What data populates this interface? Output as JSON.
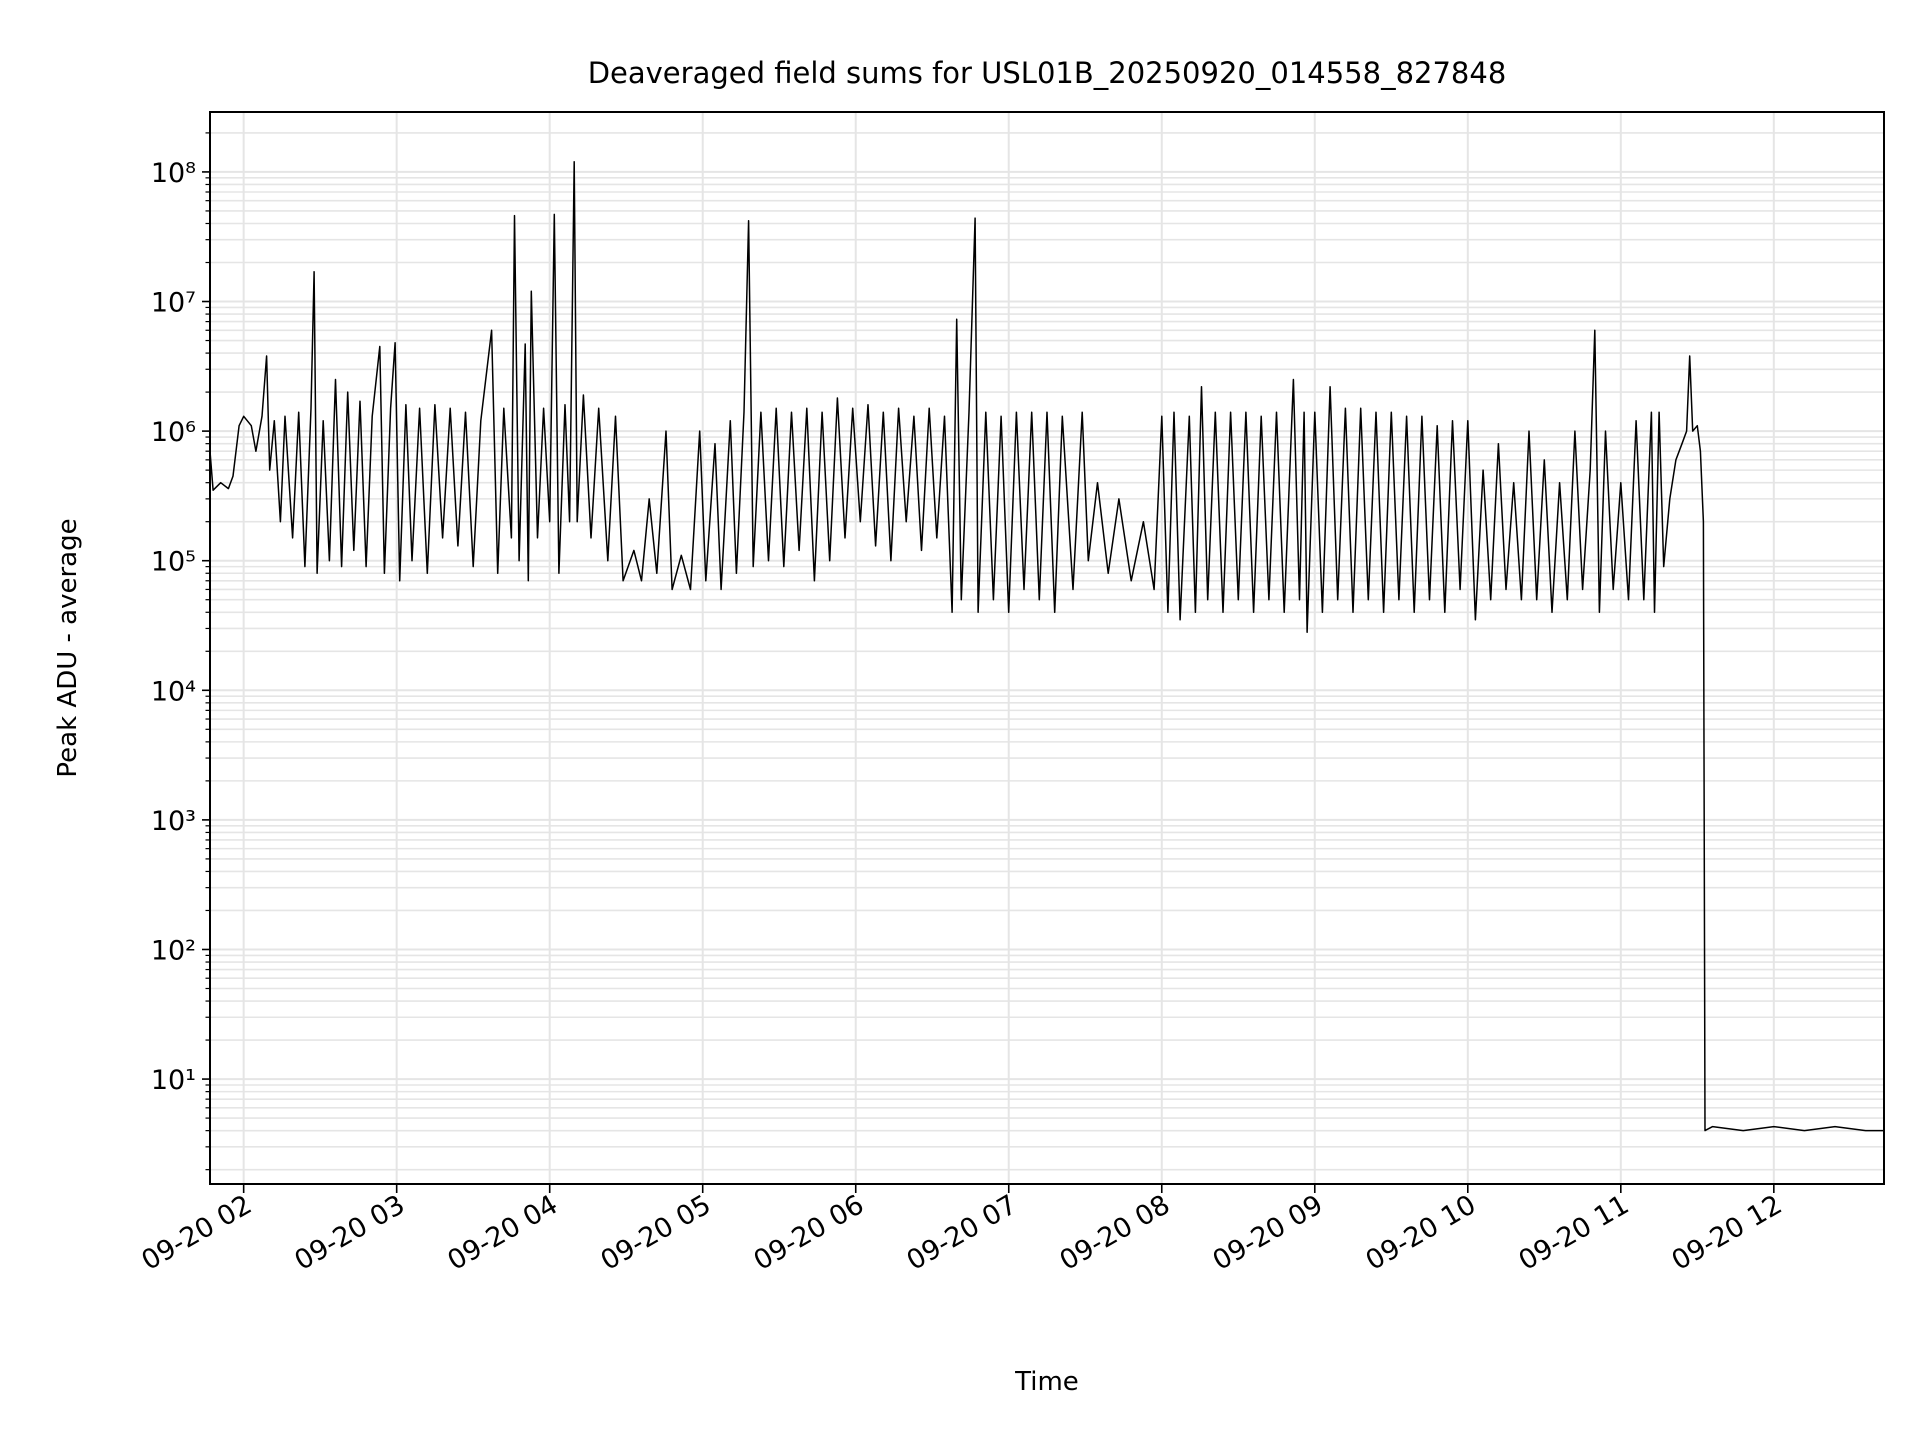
{
  "chart_data": {
    "type": "line",
    "title": "Deaveraged field sums for USL01B_20250920_014558_827848",
    "xlabel": "Time",
    "ylabel": "Peak ADU - average",
    "yscale": "log",
    "ylim": [
      1.55,
      290000000.0
    ],
    "xlim_hours": [
      1.78,
      12.72
    ],
    "grid": true,
    "line_color": "#000000",
    "grid_color": "#e5e5e5",
    "x_ticks": [
      {
        "hour": 2,
        "label": "09-20 02"
      },
      {
        "hour": 3,
        "label": "09-20 03"
      },
      {
        "hour": 4,
        "label": "09-20 04"
      },
      {
        "hour": 5,
        "label": "09-20 05"
      },
      {
        "hour": 6,
        "label": "09-20 06"
      },
      {
        "hour": 7,
        "label": "09-20 07"
      },
      {
        "hour": 8,
        "label": "09-20 08"
      },
      {
        "hour": 9,
        "label": "09-20 09"
      },
      {
        "hour": 10,
        "label": "09-20 10"
      },
      {
        "hour": 11,
        "label": "09-20 11"
      },
      {
        "hour": 12,
        "label": "09-20 12"
      }
    ],
    "y_ticks": [
      {
        "value": 10,
        "label": "10¹"
      },
      {
        "value": 100,
        "label": "10²"
      },
      {
        "value": 1000,
        "label": "10³"
      },
      {
        "value": 10000,
        "label": "10⁴"
      },
      {
        "value": 100000,
        "label": "10⁵"
      },
      {
        "value": 1000000,
        "label": "10⁶"
      },
      {
        "value": 10000000,
        "label": "10⁷"
      },
      {
        "value": 100000000,
        "label": "10⁸"
      }
    ],
    "series": [
      {
        "name": "deaveraged field sum",
        "x": [
          1.78,
          1.8,
          1.85,
          1.9,
          1.93,
          1.97,
          2.0,
          2.05,
          2.08,
          2.12,
          2.15,
          2.17,
          2.2,
          2.24,
          2.27,
          2.32,
          2.36,
          2.4,
          2.44,
          2.46,
          2.48,
          2.52,
          2.56,
          2.6,
          2.64,
          2.68,
          2.72,
          2.76,
          2.8,
          2.84,
          2.89,
          2.92,
          2.96,
          2.99,
          3.02,
          3.06,
          3.1,
          3.15,
          3.2,
          3.25,
          3.3,
          3.35,
          3.4,
          3.45,
          3.5,
          3.55,
          3.62,
          3.66,
          3.7,
          3.75,
          3.77,
          3.8,
          3.84,
          3.86,
          3.88,
          3.92,
          3.96,
          4.0,
          4.03,
          4.06,
          4.1,
          4.13,
          4.16,
          4.18,
          4.22,
          4.27,
          4.32,
          4.38,
          4.43,
          4.48,
          4.55,
          4.6,
          4.65,
          4.7,
          4.76,
          4.8,
          4.86,
          4.92,
          4.98,
          5.02,
          5.08,
          5.12,
          5.18,
          5.22,
          5.27,
          5.3,
          5.33,
          5.38,
          5.43,
          5.48,
          5.53,
          5.58,
          5.63,
          5.68,
          5.73,
          5.78,
          5.83,
          5.88,
          5.93,
          5.98,
          6.03,
          6.08,
          6.13,
          6.18,
          6.23,
          6.28,
          6.33,
          6.38,
          6.43,
          6.48,
          6.53,
          6.58,
          6.63,
          6.66,
          6.69,
          6.74,
          6.78,
          6.8,
          6.85,
          6.9,
          6.95,
          7.0,
          7.05,
          7.1,
          7.15,
          7.2,
          7.25,
          7.3,
          7.35,
          7.42,
          7.48,
          7.52,
          7.58,
          7.65,
          7.72,
          7.8,
          7.88,
          7.95,
          8.0,
          8.04,
          8.08,
          8.12,
          8.18,
          8.22,
          8.26,
          8.3,
          8.35,
          8.4,
          8.45,
          8.5,
          8.55,
          8.6,
          8.65,
          8.7,
          8.75,
          8.8,
          8.86,
          8.9,
          8.93,
          8.95,
          9.0,
          9.05,
          9.1,
          9.15,
          9.2,
          9.25,
          9.3,
          9.35,
          9.4,
          9.45,
          9.5,
          9.55,
          9.6,
          9.65,
          9.7,
          9.75,
          9.8,
          9.85,
          9.9,
          9.95,
          10.0,
          10.05,
          10.1,
          10.15,
          10.2,
          10.25,
          10.3,
          10.35,
          10.4,
          10.45,
          10.5,
          10.55,
          10.6,
          10.65,
          10.7,
          10.75,
          10.8,
          10.83,
          10.86,
          10.9,
          10.95,
          11.0,
          11.05,
          11.1,
          11.15,
          11.2,
          11.22,
          11.25,
          11.28,
          11.32,
          11.36,
          11.4,
          11.43,
          11.45,
          11.47,
          11.5,
          11.52,
          11.54,
          11.55,
          11.6,
          11.8,
          12.0,
          12.2,
          12.4,
          12.6,
          12.72
        ],
        "y": [
          700000.0,
          350000.0,
          400000.0,
          360000.0,
          450000.0,
          1100000.0,
          1300000.0,
          1100000.0,
          700000.0,
          1300000.0,
          3800000.0,
          500000.0,
          1200000.0,
          200000.0,
          1300000.0,
          150000.0,
          1400000.0,
          90000.0,
          1500000.0,
          17000000.0,
          80000.0,
          1200000.0,
          100000.0,
          2500000.0,
          90000.0,
          2000000.0,
          120000.0,
          1700000.0,
          90000.0,
          1300000.0,
          4500000.0,
          80000.0,
          1500000.0,
          4800000.0,
          70000.0,
          1600000.0,
          100000.0,
          1500000.0,
          80000.0,
          1600000.0,
          150000.0,
          1500000.0,
          130000.0,
          1400000.0,
          90000.0,
          1200000.0,
          6000000.0,
          80000.0,
          1500000.0,
          150000.0,
          46000000.0,
          100000.0,
          4700000.0,
          70000.0,
          12000000.0,
          150000.0,
          1500000.0,
          200000.0,
          47000000.0,
          80000.0,
          1600000.0,
          200000.0,
          120000000.0,
          200000.0,
          1900000.0,
          150000.0,
          1500000.0,
          100000.0,
          1300000.0,
          70000.0,
          120000.0,
          70000.0,
          300000.0,
          80000.0,
          1000000.0,
          60000.0,
          110000.0,
          60000.0,
          1000000.0,
          70000.0,
          800000.0,
          60000.0,
          1200000.0,
          80000.0,
          1400000.0,
          42000000.0,
          90000.0,
          1400000.0,
          100000.0,
          1500000.0,
          90000.0,
          1400000.0,
          120000.0,
          1500000.0,
          70000.0,
          1400000.0,
          100000.0,
          1800000.0,
          150000.0,
          1500000.0,
          200000.0,
          1600000.0,
          130000.0,
          1400000.0,
          100000.0,
          1500000.0,
          200000.0,
          1300000.0,
          120000.0,
          1500000.0,
          150000.0,
          1300000.0,
          40000.0,
          7300000.0,
          50000.0,
          1400000.0,
          44000000.0,
          40000.0,
          1400000.0,
          50000.0,
          1300000.0,
          40000.0,
          1400000.0,
          60000.0,
          1400000.0,
          50000.0,
          1400000.0,
          40000.0,
          1300000.0,
          60000.0,
          1400000.0,
          100000.0,
          400000.0,
          80000.0,
          300000.0,
          70000.0,
          200000.0,
          60000.0,
          1300000.0,
          40000.0,
          1400000.0,
          35000.0,
          1300000.0,
          40000.0,
          2200000.0,
          50000.0,
          1400000.0,
          40000.0,
          1400000.0,
          50000.0,
          1400000.0,
          40000.0,
          1300000.0,
          50000.0,
          1400000.0,
          40000.0,
          2500000.0,
          50000.0,
          1400000.0,
          28000.0,
          1400000.0,
          40000.0,
          2200000.0,
          50000.0,
          1500000.0,
          40000.0,
          1500000.0,
          50000.0,
          1400000.0,
          40000.0,
          1400000.0,
          50000.0,
          1300000.0,
          40000.0,
          1300000.0,
          50000.0,
          1100000.0,
          40000.0,
          1200000.0,
          60000.0,
          1200000.0,
          35000.0,
          500000.0,
          50000.0,
          800000.0,
          60000.0,
          400000.0,
          50000.0,
          1000000.0,
          50000.0,
          600000.0,
          40000.0,
          400000.0,
          50000.0,
          1000000.0,
          60000.0,
          500000.0,
          6000000.0,
          40000.0,
          1000000.0,
          60000.0,
          400000.0,
          50000.0,
          1200000.0,
          50000.0,
          1400000.0,
          40000.0,
          1400000.0,
          90000.0,
          300000.0,
          600000.0,
          800000.0,
          1000000.0,
          3800000.0,
          1000000.0,
          1100000.0,
          700000.0,
          200000.0,
          4,
          4.3,
          4,
          4.3,
          4,
          4.3,
          4,
          4
        ]
      }
    ]
  }
}
